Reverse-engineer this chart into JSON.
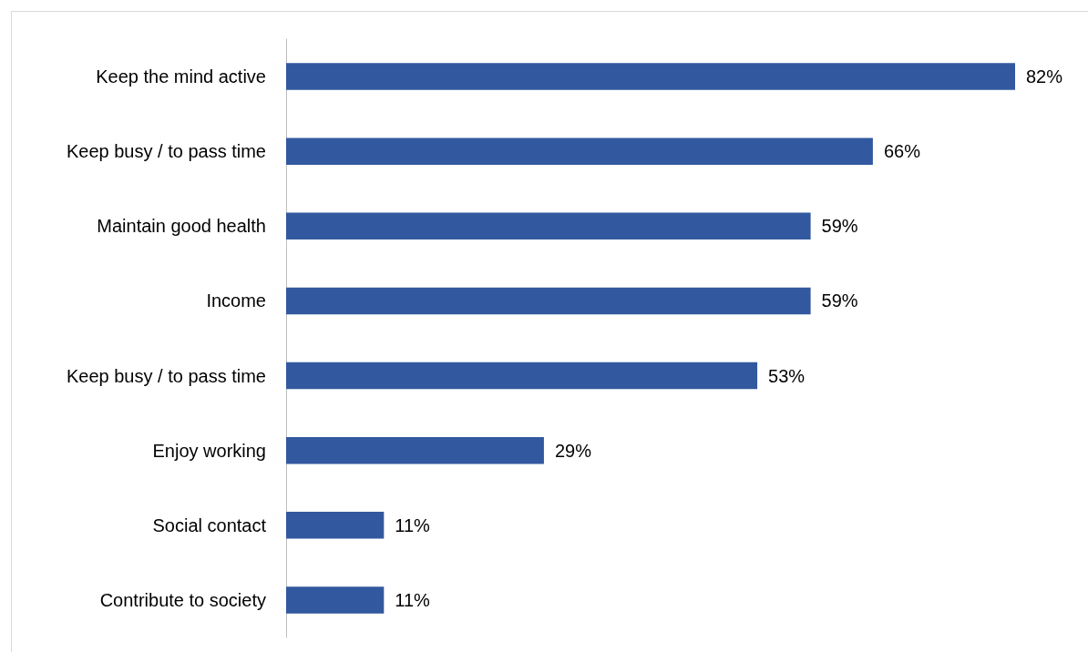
{
  "chart_data": {
    "type": "bar",
    "orientation": "horizontal",
    "categories": [
      "Keep the mind active",
      "Keep busy / to pass time",
      "Maintain good health",
      "Income",
      "Keep busy / to pass time",
      "Enjoy working",
      "Social contact",
      "Contribute to society"
    ],
    "values": [
      82,
      66,
      59,
      59,
      53,
      29,
      11,
      11
    ],
    "color": "#32599f",
    "value_labels": [
      "82%",
      "66%",
      "59%",
      "59%",
      "53%",
      "29%",
      "11%",
      "11%"
    ],
    "tick_labels": "y"
  }
}
